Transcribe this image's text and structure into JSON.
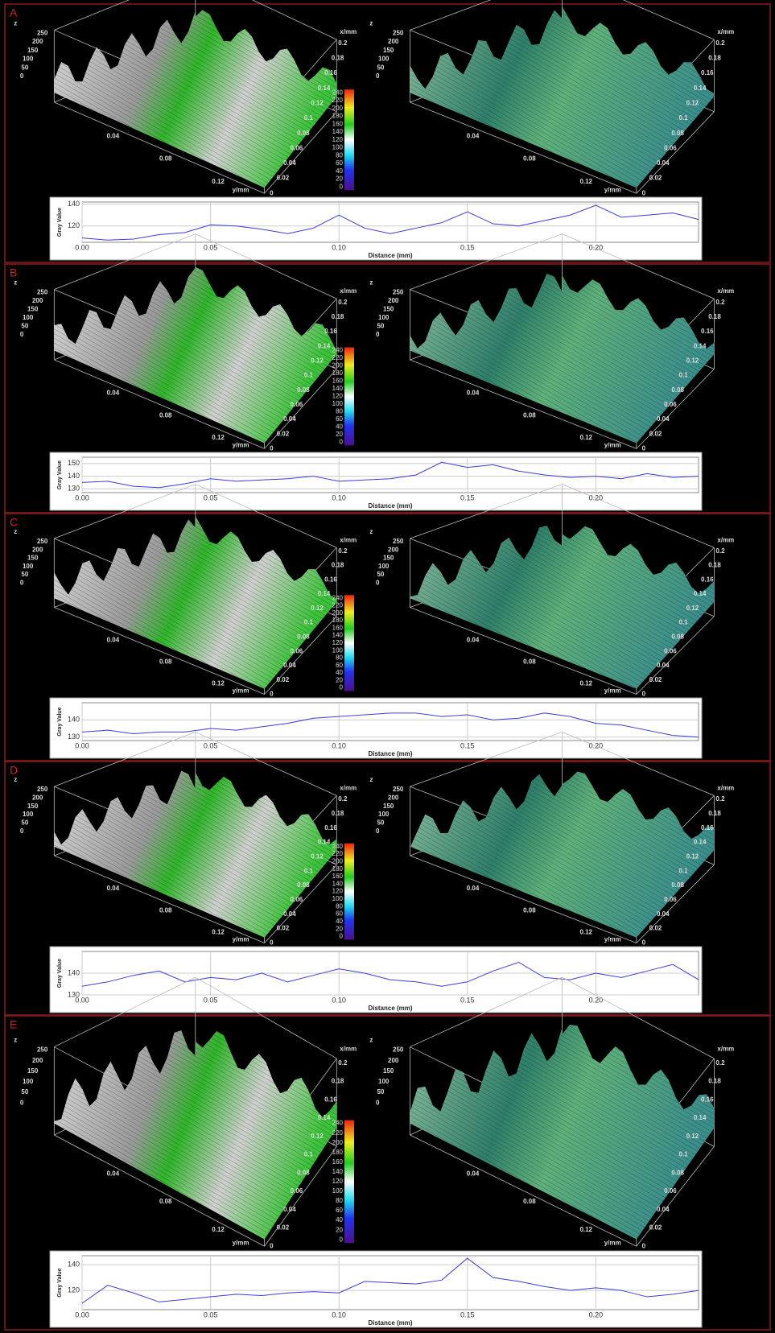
{
  "panels": [
    {
      "label": "A"
    },
    {
      "label": "B"
    },
    {
      "label": "C"
    },
    {
      "label": "D"
    },
    {
      "label": "E"
    }
  ],
  "surface_axes": {
    "z_label": "z",
    "z_ticks": [
      250,
      200,
      150,
      100,
      50,
      0
    ],
    "x_label": "x/mm",
    "x_ticks": [
      0.2,
      0.18,
      0.16,
      0.14,
      0.12,
      0.1,
      0.08,
      0.06,
      0.04,
      0.02,
      0
    ],
    "y_label": "y/mm",
    "y_ticks": [
      0.04,
      0.08,
      0.12
    ]
  },
  "colorbar_ticks": [
    240,
    220,
    200,
    180,
    160,
    140,
    120,
    100,
    80,
    60,
    40,
    20,
    0
  ],
  "chart_data": [
    {
      "type": "line",
      "ylabel": "Gray Value",
      "xlabel": "Distance (mm)",
      "xlim": [
        0,
        0.24
      ],
      "ylim": [
        105,
        142
      ],
      "yticks": [
        120,
        140
      ],
      "xticks": [
        {
          "value": 0,
          "label": "0.00"
        },
        {
          "value": 0.05,
          "label": "0.05"
        },
        {
          "value": 0.1,
          "label": "0.10"
        },
        {
          "value": 0.15,
          "label": "0.15"
        },
        {
          "value": 0.2,
          "label": "0.20"
        }
      ],
      "grid": true,
      "series": [
        {
          "color": "#3c3cd8",
          "x": [
            0,
            0.01,
            0.02,
            0.03,
            0.04,
            0.05,
            0.06,
            0.07,
            0.08,
            0.09,
            0.1,
            0.11,
            0.12,
            0.13,
            0.14,
            0.15,
            0.16,
            0.17,
            0.18,
            0.19,
            0.2,
            0.21,
            0.22,
            0.23,
            0.24
          ],
          "values": [
            109,
            107,
            108,
            112,
            114,
            121,
            120,
            117,
            113,
            118,
            130,
            118,
            113,
            118,
            123,
            133,
            122,
            120,
            125,
            130,
            139,
            128,
            130,
            132,
            126
          ]
        }
      ]
    },
    {
      "type": "line",
      "ylabel": "Gray Value",
      "xlabel": "Distance (mm)",
      "xlim": [
        0,
        0.24
      ],
      "ylim": [
        127,
        155
      ],
      "yticks": [
        130,
        140,
        150
      ],
      "xticks": [
        {
          "value": 0,
          "label": "0.00"
        },
        {
          "value": 0.05,
          "label": "0.05"
        },
        {
          "value": 0.1,
          "label": "0.10"
        },
        {
          "value": 0.15,
          "label": "0.15"
        },
        {
          "value": 0.2,
          "label": "0.20"
        }
      ],
      "grid": true,
      "series": [
        {
          "color": "#3c3cd8",
          "x": [
            0,
            0.01,
            0.02,
            0.03,
            0.04,
            0.05,
            0.06,
            0.07,
            0.08,
            0.09,
            0.1,
            0.11,
            0.12,
            0.13,
            0.14,
            0.15,
            0.16,
            0.17,
            0.18,
            0.19,
            0.2,
            0.21,
            0.22,
            0.23,
            0.24
          ],
          "values": [
            135,
            136,
            132,
            131,
            134,
            138,
            136,
            137,
            138,
            140,
            136,
            137,
            138,
            141,
            151,
            147,
            149,
            144,
            141,
            139,
            140,
            138,
            142,
            139,
            140
          ]
        }
      ]
    },
    {
      "type": "line",
      "ylabel": "Gray Value",
      "xlabel": "Distance (mm)",
      "xlim": [
        0,
        0.24
      ],
      "ylim": [
        128,
        150
      ],
      "yticks": [
        130,
        140
      ],
      "xticks": [
        {
          "value": 0,
          "label": "0.00"
        },
        {
          "value": 0.05,
          "label": "0.05"
        },
        {
          "value": 0.1,
          "label": "0.10"
        },
        {
          "value": 0.15,
          "label": "0.15"
        },
        {
          "value": 0.2,
          "label": "0.20"
        }
      ],
      "grid": true,
      "series": [
        {
          "color": "#3c3cd8",
          "x": [
            0,
            0.01,
            0.02,
            0.03,
            0.04,
            0.05,
            0.06,
            0.07,
            0.08,
            0.09,
            0.1,
            0.11,
            0.12,
            0.13,
            0.14,
            0.15,
            0.16,
            0.17,
            0.18,
            0.19,
            0.2,
            0.21,
            0.22,
            0.23,
            0.24
          ],
          "values": [
            133,
            134,
            132,
            133,
            133,
            135,
            134,
            136,
            138,
            141,
            142,
            143,
            144,
            144,
            142,
            143,
            140,
            141,
            144,
            142,
            138,
            137,
            134,
            131,
            130
          ]
        }
      ]
    },
    {
      "type": "line",
      "ylabel": "Gray Value",
      "xlabel": "Distance (mm)",
      "xlim": [
        0,
        0.24
      ],
      "ylim": [
        130,
        150
      ],
      "yticks": [
        130,
        140
      ],
      "xticks": [
        {
          "value": 0,
          "label": "0.00"
        },
        {
          "value": 0.05,
          "label": "0.05"
        },
        {
          "value": 0.1,
          "label": "0.10"
        },
        {
          "value": 0.15,
          "label": "0.15"
        },
        {
          "value": 0.2,
          "label": "0.20"
        }
      ],
      "grid": true,
      "series": [
        {
          "color": "#3c3cd8",
          "x": [
            0,
            0.01,
            0.02,
            0.03,
            0.04,
            0.05,
            0.06,
            0.07,
            0.08,
            0.09,
            0.1,
            0.11,
            0.12,
            0.13,
            0.14,
            0.15,
            0.16,
            0.17,
            0.18,
            0.19,
            0.2,
            0.21,
            0.22,
            0.23,
            0.24
          ],
          "values": [
            134,
            136,
            139,
            141,
            136,
            138,
            137,
            140,
            136,
            139,
            142,
            140,
            137,
            136,
            134,
            136,
            141,
            145,
            138,
            137,
            140,
            138,
            141,
            144,
            137
          ]
        }
      ]
    },
    {
      "type": "line",
      "ylabel": "Gray Value",
      "xlabel": "Distance (mm)",
      "xlim": [
        0,
        0.24
      ],
      "ylim": [
        105,
        147
      ],
      "yticks": [
        120,
        140
      ],
      "xticks": [
        {
          "value": 0,
          "label": "0.00"
        },
        {
          "value": 0.05,
          "label": "0.05"
        },
        {
          "value": 0.1,
          "label": "0.10"
        },
        {
          "value": 0.15,
          "label": "0.15"
        },
        {
          "value": 0.2,
          "label": "0.20"
        }
      ],
      "grid": true,
      "series": [
        {
          "color": "#3c3cd8",
          "x": [
            0,
            0.01,
            0.02,
            0.03,
            0.04,
            0.05,
            0.06,
            0.07,
            0.08,
            0.09,
            0.1,
            0.11,
            0.12,
            0.13,
            0.14,
            0.15,
            0.16,
            0.17,
            0.18,
            0.19,
            0.2,
            0.21,
            0.22,
            0.23,
            0.24
          ],
          "values": [
            110,
            124,
            118,
            111,
            113,
            115,
            117,
            116,
            118,
            119,
            118,
            127,
            126,
            125,
            128,
            145,
            130,
            127,
            123,
            120,
            122,
            120,
            115,
            117,
            120
          ]
        }
      ]
    }
  ]
}
